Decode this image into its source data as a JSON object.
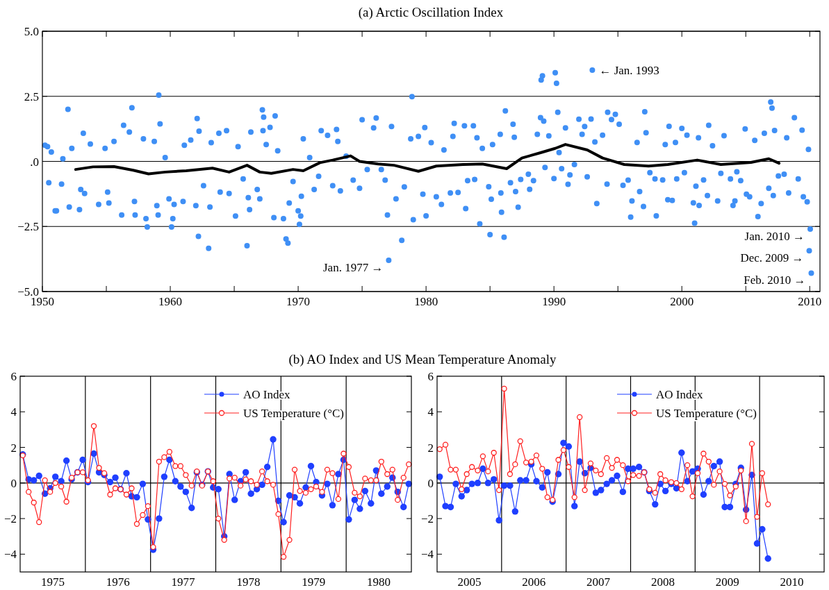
{
  "chart_data": [
    {
      "type": "scatter",
      "title": "(a)  Arctic Oscillation Index",
      "xlim": [
        1950,
        2010.8
      ],
      "ylim": [
        -5,
        5
      ],
      "xticks": [
        1950,
        {
          "value": 1955,
          "label": null
        },
        1960,
        {
          "value": 1965,
          "label": null
        },
        1970,
        {
          "value": 1975,
          "label": null
        },
        1980,
        {
          "value": 1985,
          "label": null
        },
        1990,
        {
          "value": 1995,
          "label": null
        },
        2000,
        {
          "value": 2005,
          "label": null
        },
        2010
      ],
      "yticks": [
        {
          "value": -5,
          "label": "−5.0"
        },
        {
          "value": -2.5,
          "label": "−2.5"
        },
        {
          "value": 0,
          "label": ".0"
        },
        2.5,
        {
          "value": 5,
          "label": "5.0"
        }
      ],
      "grid": "y",
      "marker": "circle",
      "legend": false,
      "annotations": [
        {
          "text": "← Jan. 1993",
          "x": 1993.0,
          "y": 3.51
        },
        {
          "text": "Jan. 1977 →",
          "x": 1977.08,
          "y": -3.8
        },
        {
          "text": "Jan. 2010 →",
          "x": 2010.04,
          "y": -2.6
        },
        {
          "text": "Dec. 2009 →",
          "x": 2009.96,
          "y": -3.43
        },
        {
          "text": "Feb. 2010 →",
          "x": 2010.12,
          "y": -4.29
        }
      ],
      "series": [
        {
          "color": "#3f8ff5",
          "x": [
            1950.2,
            1950.4,
            1950.7,
            1950.5,
            1951.0,
            1951.1,
            1952.0,
            1951.6,
            1951.5,
            1952.1,
            1952.3,
            1952.9,
            1953.2,
            1953.0,
            1953.3,
            1953.75,
            1954.4,
            1954.9,
            1955.1,
            1955.2,
            1955.6,
            1956.2,
            1956.35,
            1956.8,
            1957.0,
            1957.2,
            1957.25,
            1957.9,
            1958.1,
            1958.2,
            1958.75,
            1958.95,
            1959.05,
            1959.1,
            1959.2,
            1959.6,
            1959.9,
            1960.1,
            1960.2,
            1960.3,
            1961.0,
            1961.1,
            1961.6,
            1962.0,
            1962.1,
            1962.25,
            1962.2,
            1962.6,
            1963.0,
            1963.1,
            1963.2,
            1963.8,
            1963.9,
            1964.4,
            1964.6,
            1965.1,
            1965.3,
            1965.7,
            1966.0,
            1966.1,
            1966.3,
            1966.2,
            1966.8,
            1967.0,
            1967.2,
            1967.3,
            1967.25,
            1967.5,
            1967.8,
            1968.1,
            1968.2,
            1968.4,
            1968.85,
            1969.05,
            1969.2,
            1969.3,
            1969.6,
            1970.0,
            1970.1,
            1970.2,
            1970.25,
            1970.4,
            1970.9,
            1971.25,
            1971.6,
            1971.8,
            1972.3,
            1972.7,
            1973.0,
            1973.1,
            1973.3,
            1973.75,
            1974.3,
            1974.8,
            1975.0,
            1975.4,
            1975.9,
            1976.1,
            1976.5,
            1976.8,
            1976.98,
            1977.08,
            1977.3,
            1977.65,
            1978.1,
            1978.9,
            1978.3,
            1978.8,
            1979.0,
            1979.4,
            1979.9,
            1980.0,
            1979.75,
            1980.4,
            1980.8,
            1981.2,
            1981.4,
            1981.9,
            1982.2,
            1982.1,
            1982.5,
            1983.0,
            1983.1,
            1983.25,
            1983.7,
            1983.98,
            1984.2,
            1983.8,
            1984.4,
            1984.9,
            1985.0,
            1985.1,
            1985.2,
            1985.8,
            1985.9,
            1986.1,
            1986.2,
            1985.85,
            1986.6,
            1986.8,
            1986.9,
            1987.0,
            1987.2,
            1987.4,
            1988.0,
            1988.1,
            1988.4,
            1988.7,
            1988.95,
            1989.0,
            1989.1,
            1989.2,
            1989.3,
            1989.6,
            1990.0,
            1990.1,
            1990.2,
            1990.3,
            1990.4,
            1990.6,
            1990.9,
            1991.1,
            1991.25,
            1991.6,
            1991.95,
            1992.2,
            1992.4,
            1992.6,
            1992.9,
            1993.0,
            1993.35,
            1993.2,
            1993.8,
            1994.15,
            1994.2,
            1994.5,
            1994.8,
            1995.1,
            1995.4,
            1995.8,
            1996.0,
            1996.1,
            1996.5,
            1996.7,
            1997.0,
            1997.1,
            1997.2,
            1997.5,
            1997.9,
            1998.0,
            1998.5,
            1998.7,
            1998.9,
            1999.0,
            1999.25,
            1999.5,
            1999.6,
            2000.0,
            2000.2,
            2000.4,
            2000.9,
            2001.0,
            2001.1,
            2001.3,
            2001.35,
            2001.7,
            2002.0,
            2002.1,
            2002.4,
            2002.8,
            2003.05,
            2003.3,
            2003.8,
            2004.0,
            2004.15,
            2004.3,
            2004.6,
            2004.95,
            2005.05,
            2005.3,
            2005.7,
            2005.95,
            2006.2,
            2006.45,
            2006.8,
            2006.95,
            2007.05,
            2007.15,
            2007.25,
            2007.55,
            2008.0,
            2008.2,
            2008.35,
            2008.8,
            2009.1,
            2009.4,
            2009.5,
            2009.8,
            2009.9,
            2010.04,
            2009.96,
            2010.12
          ],
          "values": [
            0.62,
            0.57,
            0.36,
            -0.82,
            -1.9,
            -1.9,
            2.0,
            0.1,
            -0.87,
            -1.75,
            0.5,
            -1.85,
            1.08,
            -1.08,
            -1.23,
            0.67,
            -1.65,
            0.5,
            -1.18,
            -1.6,
            0.77,
            -2.06,
            1.39,
            1.13,
            2.06,
            -1.54,
            -2.06,
            0.87,
            -2.2,
            -2.52,
            0.77,
            -1.7,
            -2.06,
            2.55,
            1.44,
            0.15,
            -1.44,
            -2.52,
            -2.2,
            -1.65,
            -1.54,
            0.62,
            0.82,
            -1.7,
            1.65,
            1.16,
            -2.88,
            -0.93,
            -3.34,
            -1.75,
            0.72,
            1.08,
            -1.18,
            1.18,
            -1.23,
            -2.1,
            0.57,
            -0.67,
            -3.24,
            -1.39,
            1.13,
            -1.85,
            -1.08,
            -1.44,
            1.98,
            1.7,
            1.18,
            0.65,
            1.31,
            -2.16,
            1.75,
            0.41,
            -2.2,
            -2.98,
            -3.14,
            -1.6,
            -0.77,
            -1.9,
            -2.42,
            -2.1,
            -1.34,
            0.87,
            0.15,
            -1.08,
            -0.57,
            1.18,
            1.0,
            -0.93,
            1.23,
            0.77,
            -1.13,
            0.2,
            -0.72,
            -1.03,
            1.6,
            -0.31,
            1.29,
            1.67,
            -0.31,
            -0.72,
            -2.06,
            -3.8,
            1.34,
            -1.44,
            -3.03,
            2.49,
            -0.98,
            0.87,
            -2.24,
            0.96,
            1.3,
            -2.09,
            -1.26,
            0.72,
            -1.36,
            -1.65,
            0.44,
            -1.21,
            1.46,
            0.96,
            -1.19,
            1.37,
            -1.81,
            -0.74,
            1.37,
            0.91,
            -2.4,
            -0.69,
            0.5,
            -0.97,
            -2.81,
            -1.45,
            0.65,
            1.04,
            -1.95,
            -2.91,
            1.94,
            -1.21,
            -0.82,
            1.43,
            0.93,
            -1.16,
            -1.76,
            -0.69,
            -0.49,
            -1.07,
            -0.74,
            1.04,
            1.68,
            3.13,
            3.29,
            1.55,
            -0.23,
            0.98,
            -0.66,
            3.41,
            3.0,
            1.89,
            0.34,
            -0.28,
            1.29,
            -0.88,
            -0.52,
            -0.12,
            1.62,
            1.04,
            1.34,
            -0.59,
            1.63,
            3.51,
            -1.62,
            0.75,
            1.01,
            -0.87,
            1.89,
            1.61,
            1.81,
            1.43,
            -0.92,
            -0.72,
            -2.14,
            -1.52,
            0.73,
            -1.16,
            -1.73,
            1.91,
            1.1,
            -0.43,
            -0.67,
            -2.09,
            -0.71,
            0.65,
            -1.47,
            1.35,
            -1.5,
            0.73,
            -0.67,
            1.27,
            -0.43,
            1.01,
            -1.59,
            -2.37,
            -0.95,
            0.91,
            -1.69,
            -0.71,
            -1.31,
            1.39,
            0.6,
            -1.52,
            -0.46,
            0.99,
            -0.67,
            -1.69,
            -1.52,
            -0.4,
            -0.74,
            1.25,
            -1.26,
            -1.36,
            0.81,
            -2.12,
            -1.62,
            1.08,
            -1.03,
            2.28,
            2.05,
            -1.31,
            1.19,
            -0.56,
            -0.49,
            0.91,
            -1.21,
            1.68,
            -0.67,
            1.2,
            -1.36,
            -1.55,
            0.46,
            -2.6,
            -3.43,
            -4.29
          ]
        },
        {
          "type": "line",
          "color": "#000000",
          "marker": "none",
          "x": [
            1952.6,
            1953.96,
            1955.6,
            1957.1,
            1958.3,
            1959.6,
            1961.25,
            1963.3,
            1964.6,
            1966.0,
            1967.0,
            1967.9,
            1969.6,
            1970.4,
            1971.7,
            1972.7,
            1974.1,
            1974.8,
            1976.25,
            1977.5,
            1979.4,
            1980.8,
            1982.9,
            1984.4,
            1986.3,
            1987.5,
            1989.0,
            1990.1,
            1990.9,
            1992.6,
            1993.8,
            1995.5,
            1997.4,
            1998.9,
            2001.2,
            2003.05,
            2005.4,
            2006.8,
            2007.6
          ],
          "values": [
            -0.31,
            -0.21,
            -0.2,
            -0.34,
            -0.48,
            -0.41,
            -0.36,
            -0.26,
            -0.41,
            -0.15,
            -0.41,
            -0.46,
            -0.31,
            -0.36,
            -0.05,
            0.05,
            0.21,
            0.0,
            -0.1,
            -0.15,
            -0.38,
            -0.18,
            -0.12,
            -0.1,
            -0.28,
            0.13,
            0.34,
            0.5,
            0.65,
            0.44,
            0.13,
            -0.12,
            -0.18,
            -0.12,
            0.05,
            -0.12,
            -0.04,
            0.1,
            -0.07
          ]
        }
      ]
    },
    {
      "type": "line",
      "title": "(b)  AO Index and US Mean Temperature Anomaly",
      "xlim": [
        1975,
        1981
      ],
      "ylim": [
        -5,
        6
      ],
      "xticks": [
        {
          "value": 1975.5,
          "label": "1975"
        },
        {
          "value": 1976.5,
          "label": "1976"
        },
        {
          "value": 1977.5,
          "label": "1977"
        },
        {
          "value": 1978.5,
          "label": "1978"
        },
        {
          "value": 1979.5,
          "label": "1979"
        },
        {
          "value": 1980.5,
          "label": "1980"
        }
      ],
      "yticks": [
        {
          "value": -4,
          "label": "−4"
        },
        {
          "value": -2,
          "label": "−2"
        },
        0,
        2,
        4,
        6
      ],
      "marker": "circle",
      "legend": "top right",
      "ref_lines": [
        {
          "axis": "x",
          "value": 1976
        },
        {
          "axis": "x",
          "value": 1977
        },
        {
          "axis": "x",
          "value": 1978
        },
        {
          "axis": "x",
          "value": 1979
        },
        {
          "axis": "x",
          "value": 1980
        },
        {
          "axis": "y",
          "value": 0
        }
      ],
      "x": [
        1975.04,
        1975.13,
        1975.21,
        1975.29,
        1975.38,
        1975.46,
        1975.54,
        1975.63,
        1975.71,
        1975.79,
        1975.88,
        1975.96,
        1976.04,
        1976.13,
        1976.21,
        1976.29,
        1976.38,
        1976.46,
        1976.54,
        1976.63,
        1976.71,
        1976.79,
        1976.88,
        1976.96,
        1977.04,
        1977.13,
        1977.21,
        1977.29,
        1977.38,
        1977.46,
        1977.54,
        1977.63,
        1977.71,
        1977.79,
        1977.88,
        1977.96,
        1978.04,
        1978.13,
        1978.21,
        1978.29,
        1978.38,
        1978.46,
        1978.54,
        1978.63,
        1978.71,
        1978.79,
        1978.88,
        1978.96,
        1979.04,
        1979.13,
        1979.21,
        1979.29,
        1979.38,
        1979.46,
        1979.54,
        1979.63,
        1979.71,
        1979.79,
        1979.88,
        1979.96,
        1980.04,
        1980.13,
        1980.21,
        1980.29,
        1980.38,
        1980.46,
        1980.54,
        1980.63,
        1980.71,
        1980.79,
        1980.88,
        1980.96
      ],
      "series": [
        {
          "name": "AO Index",
          "color": "#1f3fff",
          "values": [
            1.6,
            0.2,
            0.15,
            0.4,
            -0.6,
            -0.3,
            0.35,
            0.1,
            1.25,
            0.2,
            0.6,
            1.3,
            0.05,
            1.65,
            0.6,
            0.45,
            0.05,
            0.3,
            -0.35,
            0.55,
            -0.75,
            -0.8,
            -0.05,
            -2.05,
            -3.75,
            -2.0,
            0.35,
            1.3,
            0.1,
            -0.2,
            -0.5,
            -1.4,
            0.6,
            -0.1,
            0.65,
            -0.25,
            -0.35,
            -3.0,
            0.5,
            -0.95,
            0.1,
            0.6,
            -0.6,
            -0.35,
            -0.1,
            0.9,
            2.45,
            -1.0,
            -2.2,
            -0.7,
            -0.8,
            -1.15,
            -0.25,
            0.95,
            0.05,
            -0.7,
            -0.05,
            -1.25,
            0.5,
            1.3,
            -2.05,
            -0.95,
            -1.45,
            -0.45,
            -1.15,
            0.7,
            -0.6,
            -0.2,
            0.3,
            -0.5,
            -1.35,
            -0.05
          ]
        },
        {
          "name": "US Temperature (°C)",
          "color": "#ff1f1f",
          "values": [
            1.55,
            -0.5,
            -1.1,
            -2.2,
            0.15,
            -0.5,
            0.0,
            -0.2,
            -1.05,
            0.3,
            0.6,
            0.6,
            0.15,
            3.2,
            0.85,
            0.55,
            -0.65,
            -0.3,
            -0.35,
            -0.65,
            -0.3,
            -2.3,
            -1.8,
            -1.3,
            -3.6,
            1.2,
            1.45,
            1.75,
            0.95,
            0.95,
            0.45,
            -0.15,
            0.65,
            -0.15,
            0.65,
            0.1,
            -2.0,
            -3.2,
            0.25,
            0.3,
            -0.15,
            0.2,
            0.1,
            -0.1,
            0.65,
            0.1,
            -0.1,
            -1.75,
            -4.15,
            -3.2,
            0.75,
            -0.45,
            -0.55,
            -0.35,
            -0.2,
            -0.5,
            0.75,
            0.55,
            -0.9,
            1.65,
            0.9,
            -0.55,
            -0.75,
            0.25,
            0.15,
            0.15,
            1.2,
            0.5,
            0.75,
            -0.95,
            0.3,
            1.05
          ]
        }
      ]
    },
    {
      "type": "line",
      "xlim": [
        2005,
        2011
      ],
      "ylim": [
        -5,
        6
      ],
      "xticks": [
        {
          "value": 2005.5,
          "label": "2005"
        },
        {
          "value": 2006.5,
          "label": "2006"
        },
        {
          "value": 2007.5,
          "label": "2007"
        },
        {
          "value": 2008.5,
          "label": "2008"
        },
        {
          "value": 2009.5,
          "label": "2009"
        },
        {
          "value": 2010.5,
          "label": "2010"
        }
      ],
      "yticks": [
        {
          "value": -4,
          "label": "−4"
        },
        {
          "value": -2,
          "label": "−2"
        },
        0,
        2,
        4,
        6
      ],
      "marker": "circle",
      "legend": "top right",
      "ref_lines": [
        {
          "axis": "x",
          "value": 2006
        },
        {
          "axis": "x",
          "value": 2007
        },
        {
          "axis": "x",
          "value": 2008
        },
        {
          "axis": "x",
          "value": 2009
        },
        {
          "axis": "x",
          "value": 2010
        },
        {
          "axis": "y",
          "value": 0
        }
      ],
      "x": [
        2005.04,
        2005.13,
        2005.21,
        2005.29,
        2005.38,
        2005.46,
        2005.54,
        2005.63,
        2005.71,
        2005.79,
        2005.88,
        2005.96,
        2006.04,
        2006.13,
        2006.21,
        2006.29,
        2006.38,
        2006.46,
        2006.54,
        2006.63,
        2006.71,
        2006.79,
        2006.88,
        2006.96,
        2007.04,
        2007.13,
        2007.21,
        2007.29,
        2007.38,
        2007.46,
        2007.54,
        2007.63,
        2007.71,
        2007.79,
        2007.88,
        2007.96,
        2008.04,
        2008.13,
        2008.21,
        2008.29,
        2008.38,
        2008.46,
        2008.54,
        2008.63,
        2008.71,
        2008.79,
        2008.88,
        2008.96,
        2009.04,
        2009.13,
        2009.21,
        2009.29,
        2009.38,
        2009.46,
        2009.54,
        2009.63,
        2009.71,
        2009.79,
        2009.88,
        2009.96,
        2010.04,
        2010.13
      ],
      "series": [
        {
          "name": "AO Index",
          "color": "#1f3fff",
          "values": [
            0.35,
            -1.3,
            -1.35,
            -0.05,
            -0.75,
            -0.4,
            -0.05,
            0.0,
            0.8,
            0.0,
            0.2,
            -2.1,
            -0.15,
            -0.15,
            -1.6,
            0.15,
            0.15,
            1.05,
            0.1,
            -0.25,
            0.6,
            -1.05,
            0.5,
            2.25,
            2.05,
            -1.3,
            1.2,
            0.55,
            0.85,
            -0.55,
            -0.4,
            -0.05,
            0.15,
            0.4,
            -0.5,
            0.8,
            0.8,
            0.9,
            0.6,
            -0.45,
            -1.2,
            -0.05,
            -0.45,
            -0.05,
            -0.3,
            1.7,
            0.1,
            0.65,
            0.8,
            -0.65,
            0.1,
            0.95,
            1.2,
            -1.35,
            -1.35,
            -0.05,
            0.85,
            -1.5,
            0.45,
            -3.4,
            -2.6,
            -4.25
          ]
        },
        {
          "name": "US Temperature (°C)",
          "color": "#ff1f1f",
          "values": [
            1.9,
            2.15,
            0.75,
            0.75,
            -0.35,
            0.5,
            0.9,
            0.7,
            1.5,
            0.65,
            1.7,
            -0.4,
            5.3,
            0.5,
            1.05,
            2.35,
            1.15,
            1.2,
            1.55,
            0.8,
            -0.8,
            -0.95,
            1.3,
            1.85,
            0.9,
            -0.8,
            3.7,
            -0.4,
            1.1,
            0.7,
            0.5,
            1.4,
            0.85,
            1.3,
            1.0,
            0.1,
            0.45,
            0.4,
            0.6,
            -0.35,
            -0.55,
            0.5,
            0.15,
            0.05,
            0.0,
            -0.35,
            1.0,
            -0.75,
            0.55,
            1.65,
            1.2,
            -0.1,
            0.65,
            -0.05,
            -0.7,
            -0.2,
            0.7,
            -2.15,
            2.2,
            -1.9,
            0.55,
            -1.2
          ]
        }
      ]
    }
  ]
}
